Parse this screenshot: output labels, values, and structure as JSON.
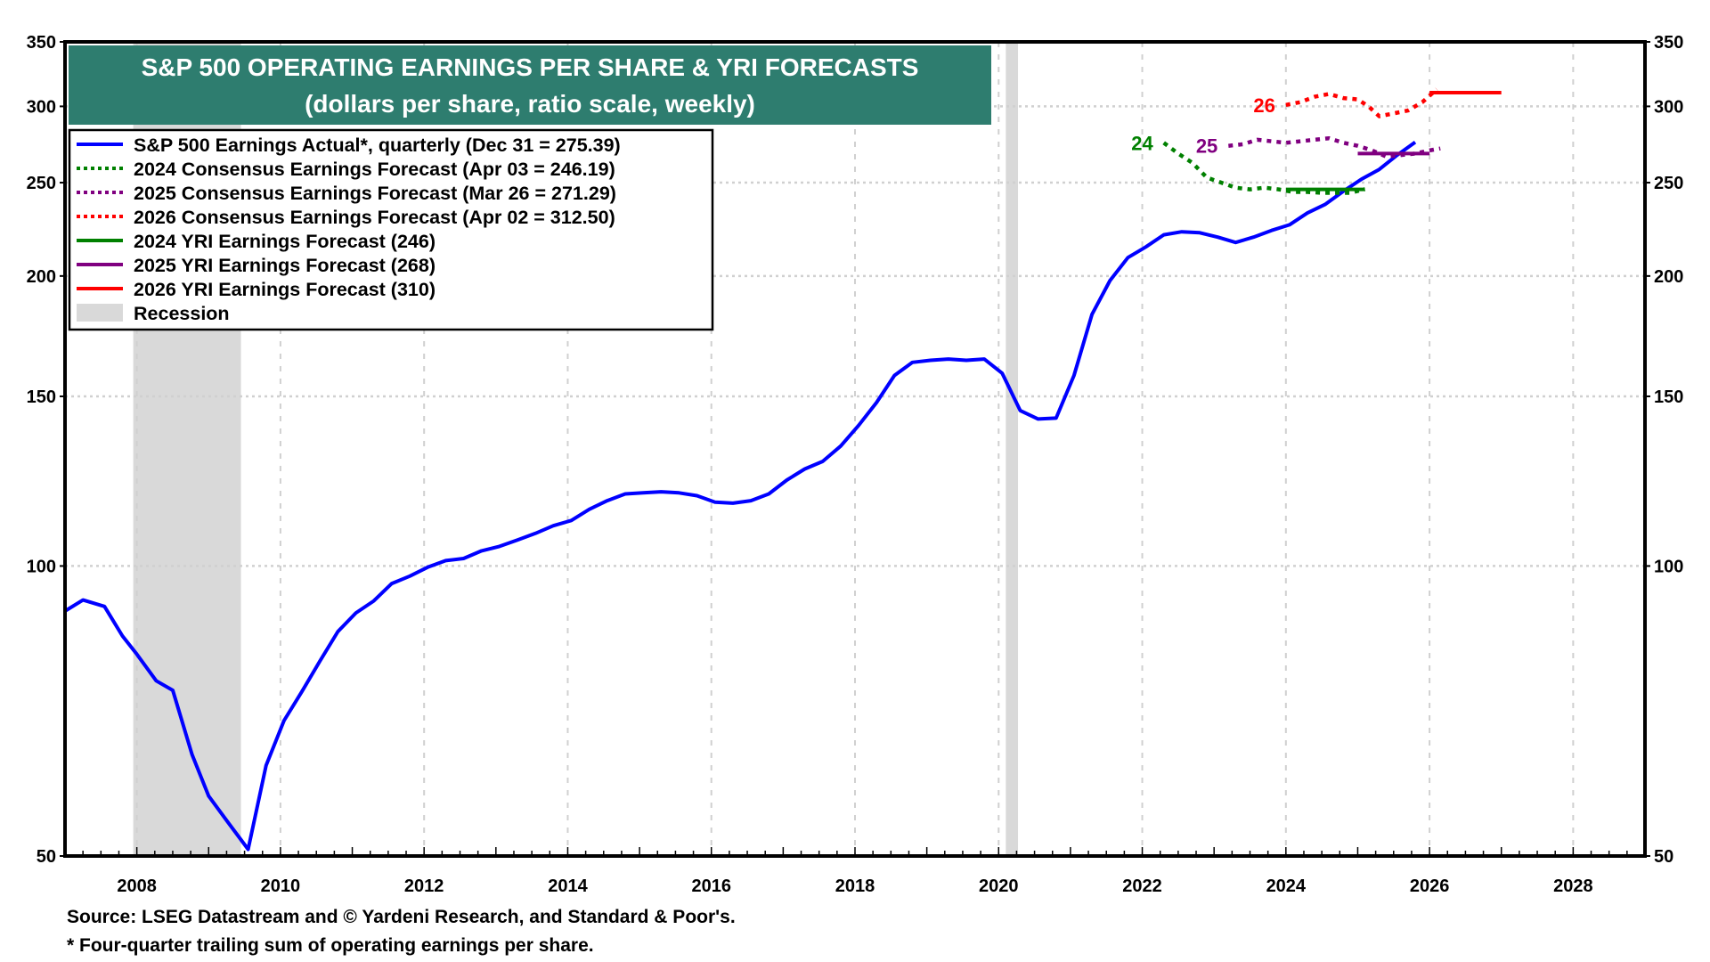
{
  "chart_data": {
    "type": "line",
    "title": "S&P 500 OPERATING EARNINGS PER SHARE & YRI FORECASTS",
    "subtitle": "(dollars per share, ratio scale, weekly)",
    "y_scale": "log",
    "ylim": [
      50,
      350
    ],
    "yticks": [
      50,
      100,
      150,
      200,
      250,
      300,
      350
    ],
    "xlim": [
      2007,
      2029
    ],
    "xticks": [
      2008,
      2010,
      2012,
      2014,
      2016,
      2018,
      2020,
      2022,
      2024,
      2026,
      2028
    ],
    "grid": true,
    "legend_position": "top-left",
    "series": [
      {
        "name": "S&P 500 Earnings Actual*, quarterly (Dec 31 = 275.39)",
        "color": "#0000ff",
        "style": "solid",
        "x": [
          2007.0,
          2007.25,
          2007.55,
          2007.8,
          2008.0,
          2008.27,
          2008.5,
          2008.77,
          2009.0,
          2009.3,
          2009.55,
          2009.8,
          2010.05,
          2010.3,
          2010.55,
          2010.8,
          2011.05,
          2011.3,
          2011.55,
          2011.8,
          2012.05,
          2012.3,
          2012.55,
          2012.8,
          2013.05,
          2013.3,
          2013.55,
          2013.8,
          2014.05,
          2014.3,
          2014.55,
          2014.8,
          2015.05,
          2015.3,
          2015.55,
          2015.8,
          2016.05,
          2016.3,
          2016.55,
          2016.8,
          2017.05,
          2017.3,
          2017.55,
          2017.8,
          2018.05,
          2018.3,
          2018.55,
          2018.8,
          2019.05,
          2019.3,
          2019.55,
          2019.8,
          2020.05,
          2020.3,
          2020.55,
          2020.8,
          2021.05,
          2021.3,
          2021.55,
          2021.8,
          2022.05,
          2022.3,
          2022.55,
          2022.8,
          2023.05,
          2023.3,
          2023.55,
          2023.8,
          2024.05,
          2024.3,
          2024.55,
          2024.8,
          2025.05,
          2025.3,
          2025.55,
          2025.8
        ],
        "y": [
          89.8,
          92.2,
          90.8,
          84.6,
          81,
          76,
          74.3,
          63.7,
          57.7,
          53.8,
          50.8,
          62.1,
          69.1,
          74.1,
          79.7,
          85.5,
          89.4,
          92,
          95.9,
          97.6,
          99.7,
          101.3,
          101.8,
          103.7,
          104.8,
          106.4,
          108.1,
          110.1,
          111.5,
          114.5,
          116.9,
          118.8,
          119.1,
          119.4,
          119.1,
          118.3,
          116.5,
          116.2,
          116.9,
          118.8,
          122.8,
          126.1,
          128.4,
          133.2,
          139.9,
          147.8,
          157.7,
          162.7,
          163.5,
          164,
          163.5,
          164,
          158.5,
          145,
          142.1,
          142.4,
          157.7,
          182.5,
          197.8,
          209,
          214.4,
          220.7,
          222.3,
          221.8,
          219.5,
          216.7,
          219.5,
          223,
          226,
          232.5,
          237.4,
          244.9,
          252,
          258,
          267,
          275.39
        ]
      },
      {
        "name": "2024 Consensus Earnings Forecast (Apr 03 = 246.19)",
        "color": "#008000",
        "style": "dotted",
        "label": "24",
        "x": [
          2022.3,
          2022.5,
          2022.7,
          2022.9,
          2023.1,
          2023.3,
          2023.5,
          2023.7,
          2023.9,
          2024.1,
          2024.3,
          2024.5,
          2024.7,
          2024.9,
          2025.1
        ],
        "y": [
          275,
          268,
          262,
          253,
          250,
          247,
          246,
          247,
          246,
          244.5,
          244.5,
          244,
          244,
          244,
          246.19
        ]
      },
      {
        "name": "2025 Consensus Earnings Forecast (Mar 26 = 271.29)",
        "color": "#800080",
        "style": "dotted",
        "label": "25",
        "x": [
          2023.2,
          2023.4,
          2023.6,
          2023.8,
          2024.0,
          2024.2,
          2024.4,
          2024.6,
          2024.8,
          2025.0,
          2025.2,
          2025.4,
          2025.6,
          2025.8,
          2026.0,
          2026.15
        ],
        "y": [
          273,
          274,
          277,
          276,
          275,
          276,
          277,
          278,
          275,
          273,
          270,
          266,
          267,
          268,
          270,
          271.29
        ]
      },
      {
        "name": "2026 Consensus Earnings Forecast (Apr 02 = 312.50)",
        "color": "#ff0000",
        "style": "dotted",
        "label": "26",
        "x": [
          2024.0,
          2024.2,
          2024.4,
          2024.6,
          2024.8,
          2025.0,
          2025.15,
          2025.3,
          2025.5,
          2025.7,
          2025.9,
          2026.1
        ],
        "y": [
          301,
          303,
          307,
          309,
          306,
          305,
          300,
          293,
          295,
          297,
          303,
          312.5
        ]
      },
      {
        "name": "2024 YRI Earnings Forecast (246)",
        "color": "#008000",
        "style": "solid",
        "x": [
          2024.0,
          2025.1
        ],
        "y": [
          246,
          246
        ]
      },
      {
        "name": "2025 YRI Earnings Forecast (268)",
        "color": "#800080",
        "style": "solid",
        "x": [
          2025.0,
          2026.0
        ],
        "y": [
          268,
          268
        ]
      },
      {
        "name": "2026 YRI Earnings Forecast (310)",
        "color": "#ff0000",
        "style": "solid",
        "x": [
          2026.0,
          2027.0
        ],
        "y": [
          310,
          310
        ]
      }
    ],
    "recessions": [
      {
        "name": "Recession",
        "start": 2007.95,
        "end": 2009.45
      },
      {
        "name": "Recession",
        "start": 2020.1,
        "end": 2020.27
      }
    ],
    "recession_color": "#d9d9d9",
    "title_bg_color": "#2e7d6f",
    "footnotes": [
      "Source: LSEG Datastream and © Yardeni Research, and Standard & Poor's.",
      "* Four-quarter trailing sum of operating earnings per share."
    ]
  }
}
